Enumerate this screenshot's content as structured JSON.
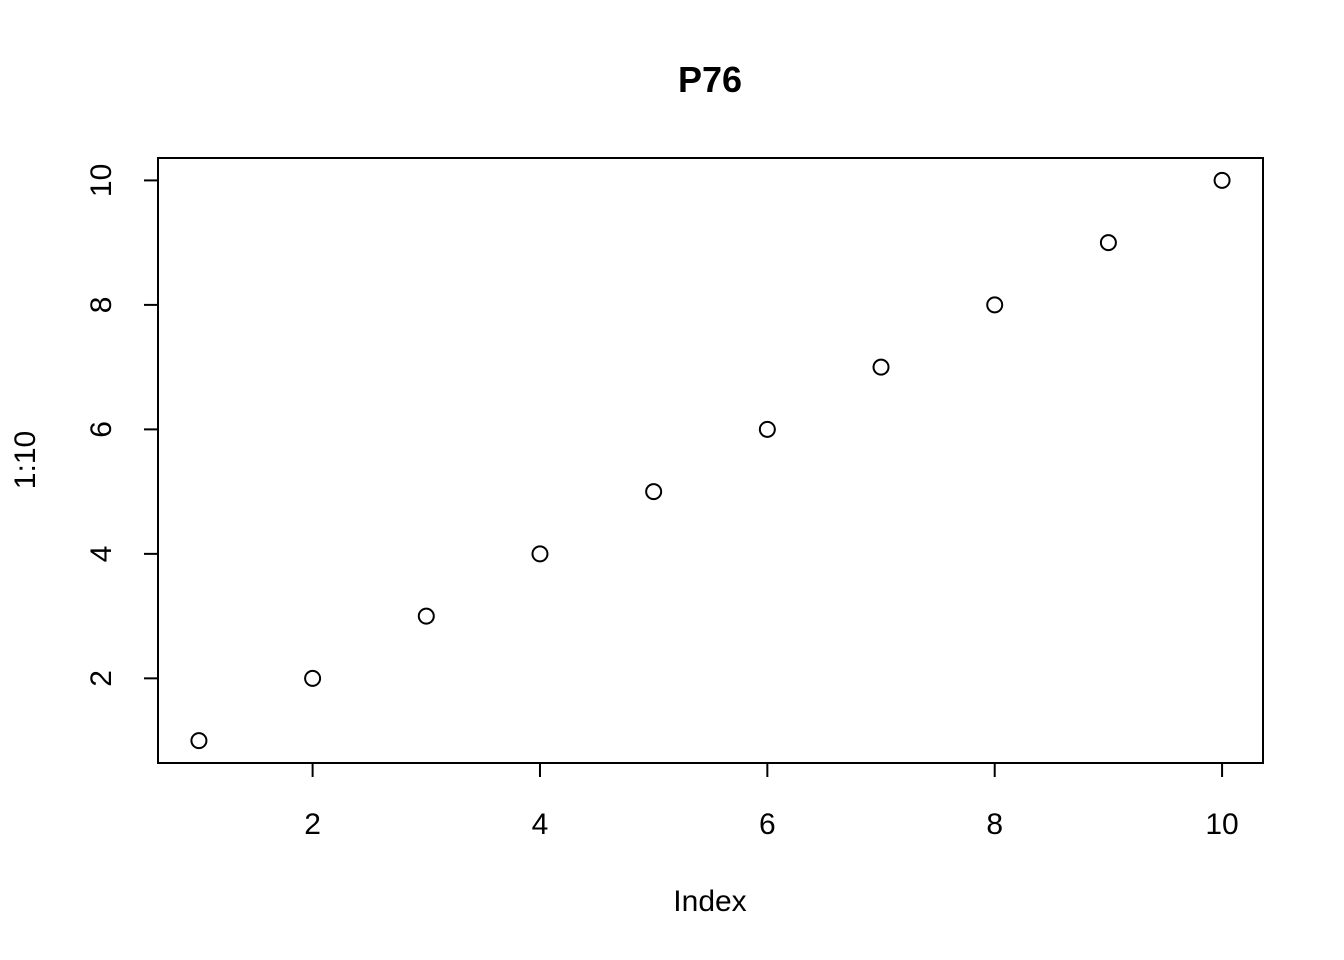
{
  "chart_data": {
    "type": "scatter",
    "title": "P76",
    "xlabel": "Index",
    "ylabel": "1:10",
    "x": [
      1,
      2,
      3,
      4,
      5,
      6,
      7,
      8,
      9,
      10
    ],
    "y": [
      1,
      2,
      3,
      4,
      5,
      6,
      7,
      8,
      9,
      10
    ],
    "xticks": [
      2,
      4,
      6,
      8,
      10
    ],
    "yticks": [
      2,
      4,
      6,
      8,
      10
    ],
    "xlim": [
      0.64,
      10.36
    ],
    "ylim": [
      0.64,
      10.36
    ],
    "marker": "open-circle",
    "color": "#000000",
    "grid": false
  }
}
